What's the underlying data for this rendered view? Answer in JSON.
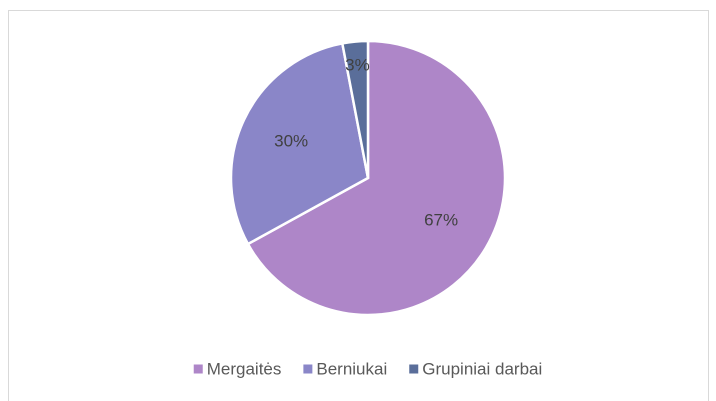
{
  "chart_data": {
    "type": "pie",
    "categories": [
      "Mergaitės",
      "Berniukai",
      "Grupiniai darbai"
    ],
    "values": [
      67,
      30,
      3
    ],
    "value_labels": [
      "67%",
      "30%",
      "3%"
    ],
    "colors": [
      "#ae86c8",
      "#8a86c8",
      "#5a6e9a"
    ],
    "legend": "bottom"
  }
}
